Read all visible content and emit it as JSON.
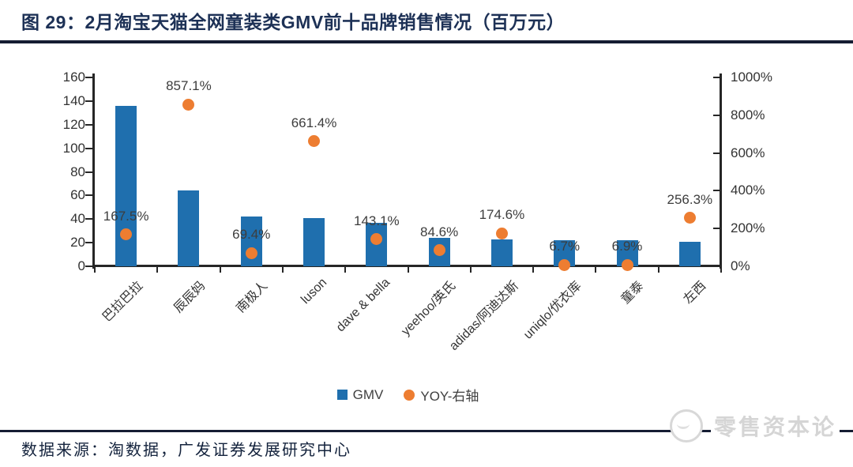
{
  "title": "图 29：2月淘宝天猫全网童装类GMV前十品牌销售情况（百万元）",
  "source": "数据来源：淘数据，广发证券发展研究中心",
  "watermark": {
    "text": "零售资本论",
    "logo": "cat-face-icon"
  },
  "colors": {
    "bar": "#1F6FAE",
    "dot": "#ED7D31",
    "title_text": "#1D3156",
    "rule": "#151D33",
    "axis": "#262626",
    "label_text": "#3D3D3D",
    "watermark_gray": "#D5D5D5"
  },
  "chart_data": {
    "type": "bar",
    "title": "2月淘宝天猫全网童装类GMV前十品牌销售情况（百万元）",
    "categories": [
      "巴拉巴拉",
      "辰辰妈",
      "南极人",
      "luson",
      "dave & bella",
      "yeehoo/英氏",
      "adidas/阿迪达斯",
      "uniqlo/优衣库",
      "童泰",
      "左西"
    ],
    "series": [
      {
        "name": "GMV",
        "type": "bar",
        "axis": "left",
        "color": "#1F6FAE",
        "values": [
          136,
          64,
          42,
          41,
          37,
          24,
          23,
          22,
          22,
          21
        ]
      },
      {
        "name": "YOY-右轴",
        "type": "scatter",
        "axis": "right",
        "color": "#ED7D31",
        "values": [
          167.5,
          857.1,
          69.4,
          661.4,
          143.1,
          84.6,
          174.6,
          6.7,
          6.9,
          256.3
        ],
        "point_labels": [
          "167.5%",
          "857.1%",
          "69.4%",
          "661.4%",
          "143.1%",
          "84.6%",
          "174.6%",
          "6.7%",
          "6.9%",
          "256.3%"
        ]
      }
    ],
    "left_axis": {
      "min": 0,
      "max": 160,
      "tick_labels": [
        "0",
        "20",
        "40",
        "60",
        "80",
        "100",
        "120",
        "140",
        "160"
      ]
    },
    "right_axis": {
      "min": 0,
      "max": 1000,
      "tick_labels": [
        "0%",
        "200%",
        "400%",
        "600%",
        "800%",
        "1000%"
      ]
    },
    "grid": false,
    "legend_position": "bottom",
    "xlabel": "",
    "ylabel": ""
  }
}
